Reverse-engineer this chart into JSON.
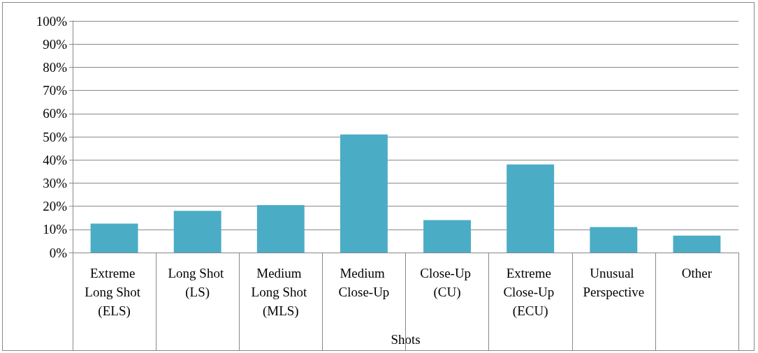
{
  "chart_data": {
    "type": "bar",
    "xlabel": "Shots",
    "categories": [
      "Extreme Long Shot (ELS)",
      "Long Shot (LS)",
      "Medium Long Shot (MLS)",
      "Medium Close-Up",
      "Close-Up (CU)",
      "Extreme Close-Up (ECU)",
      "Unusual Perspective",
      "Other"
    ],
    "values": [
      12.5,
      18,
      20.5,
      51,
      14,
      38,
      11,
      7.3
    ],
    "color": "#4bacc6",
    "ylim": [
      0,
      100
    ],
    "yticks": [
      {
        "value": 0,
        "label": "0%"
      },
      {
        "value": 10,
        "label": "10%"
      },
      {
        "value": 20,
        "label": "20%"
      },
      {
        "value": 30,
        "label": "30%"
      },
      {
        "value": 40,
        "label": "40%"
      },
      {
        "value": 50,
        "label": "50%"
      },
      {
        "value": 60,
        "label": "60%"
      },
      {
        "value": 70,
        "label": "70%"
      },
      {
        "value": 80,
        "label": "80%"
      },
      {
        "value": 90,
        "label": "90%"
      },
      {
        "value": 100,
        "label": "100%"
      }
    ],
    "grid": "y"
  }
}
